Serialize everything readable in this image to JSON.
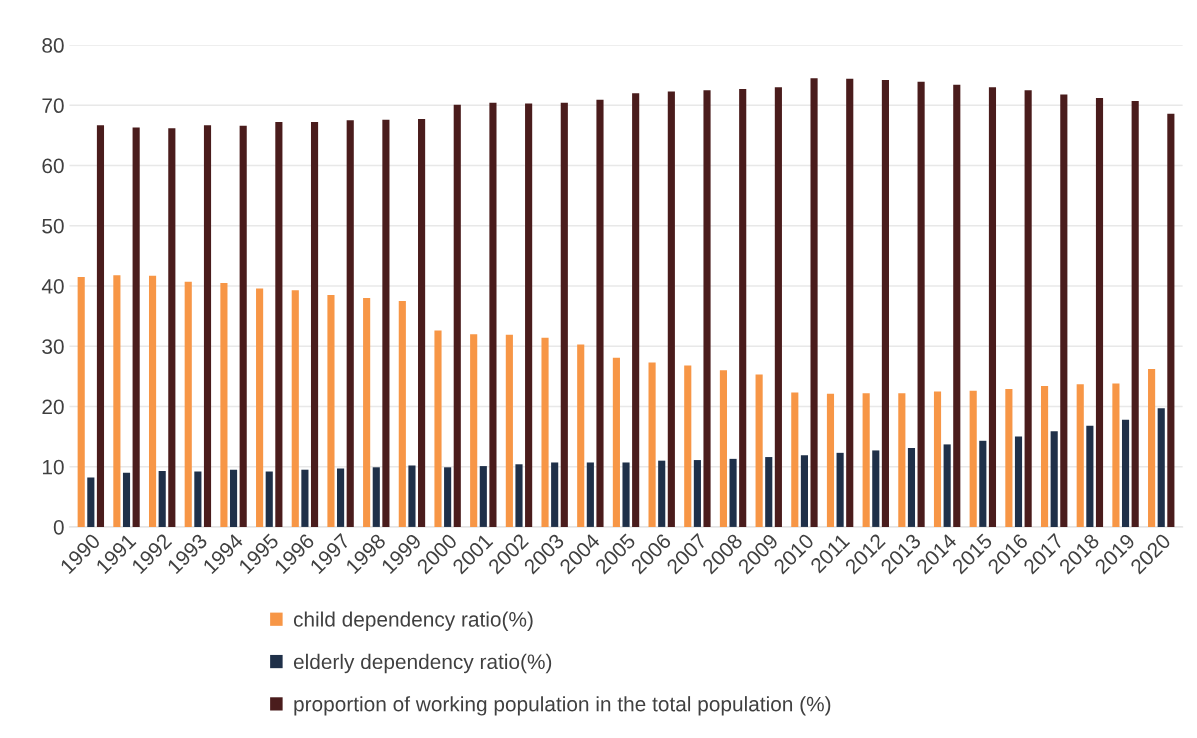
{
  "chart_data": {
    "type": "bar",
    "categories": [
      "1990",
      "1991",
      "1992",
      "1993",
      "1994",
      "1995",
      "1996",
      "1997",
      "1998",
      "1999",
      "2000",
      "2001",
      "2002",
      "2003",
      "2004",
      "2005",
      "2006",
      "2007",
      "2008",
      "2009",
      "2010",
      "2011",
      "2012",
      "2013",
      "2014",
      "2015",
      "2016",
      "2017",
      "2018",
      "2019",
      "2020"
    ],
    "series": [
      {
        "name": "child dependency ratio(%)",
        "color": "#f79646",
        "values": [
          41.5,
          41.8,
          41.7,
          40.7,
          40.5,
          39.6,
          39.3,
          38.5,
          38.0,
          37.5,
          32.6,
          32.0,
          31.9,
          31.4,
          30.3,
          28.1,
          27.3,
          26.8,
          26.0,
          25.3,
          22.3,
          22.1,
          22.2,
          22.2,
          22.5,
          22.6,
          22.9,
          23.4,
          23.7,
          23.8,
          26.2
        ]
      },
      {
        "name": "elderly dependency ratio(%)",
        "color": "#1f3049",
        "values": [
          8.2,
          9.0,
          9.3,
          9.2,
          9.5,
          9.2,
          9.5,
          9.7,
          9.9,
          10.2,
          9.9,
          10.1,
          10.4,
          10.7,
          10.7,
          10.7,
          11.0,
          11.1,
          11.3,
          11.6,
          11.9,
          12.3,
          12.7,
          13.1,
          13.7,
          14.3,
          15.0,
          15.9,
          16.8,
          17.8,
          19.7
        ]
      },
      {
        "name": "proportion of working population in the total population (%)",
        "color": "#4a1c1c",
        "values": [
          66.7,
          66.3,
          66.2,
          66.7,
          66.6,
          67.2,
          67.2,
          67.5,
          67.6,
          67.7,
          70.1,
          70.4,
          70.3,
          70.4,
          70.9,
          72.0,
          72.3,
          72.5,
          72.7,
          73.0,
          74.5,
          74.4,
          74.2,
          73.9,
          73.4,
          73.0,
          72.5,
          71.8,
          71.2,
          70.7,
          68.6
        ]
      }
    ],
    "ylim": [
      0,
      80
    ],
    "yticks": [
      0,
      10,
      20,
      30,
      40,
      50,
      60,
      70,
      80
    ],
    "grid": "y",
    "legend": "bottom"
  }
}
